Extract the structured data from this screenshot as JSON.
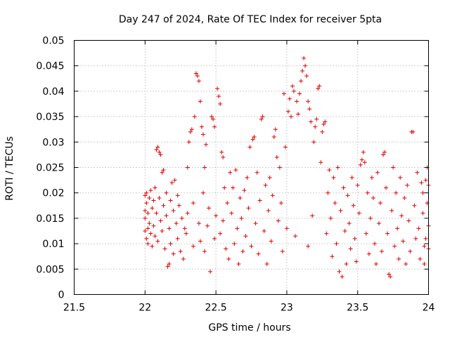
{
  "chart_data": {
    "type": "scatter",
    "title": "Day 247 of 2024, Rate Of TEC Index for receiver 5pta",
    "xlabel": "GPS time / hours",
    "ylabel": "ROTI / TECUs",
    "xlim": [
      21.5,
      24
    ],
    "ylim": [
      0,
      0.05
    ],
    "xticks": [
      21.5,
      22,
      22.5,
      23,
      23.5,
      24
    ],
    "xtick_labels": [
      "21.5",
      "22",
      "22.5",
      "23",
      "23.5",
      "24"
    ],
    "yticks": [
      0,
      0.005,
      0.01,
      0.015,
      0.02,
      0.025,
      0.03,
      0.035,
      0.04,
      0.045,
      0.05
    ],
    "ytick_labels": [
      "0",
      "0.005",
      "0.01",
      "0.015",
      "0.02",
      "0.025",
      "0.03",
      "0.035",
      "0.04",
      "0.045",
      "0.05"
    ],
    "grid": true,
    "marker": "+",
    "marker_color": "#e00000",
    "series": [
      {
        "name": "ROTI",
        "points": [
          [
            22.0,
            0.0195
          ],
          [
            22.0,
            0.0165
          ],
          [
            22.0,
            0.0125
          ],
          [
            22.0,
            0.015
          ],
          [
            22.01,
            0.018
          ],
          [
            22.01,
            0.011
          ],
          [
            22.01,
            0.02
          ],
          [
            22.02,
            0.013
          ],
          [
            22.02,
            0.016
          ],
          [
            22.02,
            0.01
          ],
          [
            22.03,
            0.019
          ],
          [
            22.03,
            0.014
          ],
          [
            22.04,
            0.0205
          ],
          [
            22.04,
            0.012
          ],
          [
            22.05,
            0.017
          ],
          [
            22.05,
            0.0095
          ],
          [
            22.06,
            0.0185
          ],
          [
            22.06,
            0.0135
          ],
          [
            22.07,
            0.021
          ],
          [
            22.07,
            0.0115
          ],
          [
            22.08,
            0.0285
          ],
          [
            22.09,
            0.029
          ],
          [
            22.1,
            0.028
          ],
          [
            22.11,
            0.0275
          ],
          [
            22.08,
            0.016
          ],
          [
            22.09,
            0.0105
          ],
          [
            22.1,
            0.019
          ],
          [
            22.11,
            0.0145
          ],
          [
            22.12,
            0.024
          ],
          [
            22.12,
            0.0125
          ],
          [
            22.13,
            0.0245
          ],
          [
            22.13,
            0.0175
          ],
          [
            22.14,
            0.009
          ],
          [
            22.15,
            0.02
          ],
          [
            22.15,
            0.0155
          ],
          [
            22.16,
            0.0055
          ],
          [
            22.17,
            0.006
          ],
          [
            22.17,
            0.013
          ],
          [
            22.18,
            0.0185
          ],
          [
            22.18,
            0.01
          ],
          [
            22.19,
            0.022
          ],
          [
            22.2,
            0.0165
          ],
          [
            22.2,
            0.008
          ],
          [
            22.21,
            0.0225
          ],
          [
            22.22,
            0.014
          ],
          [
            22.23,
            0.0195
          ],
          [
            22.23,
            0.011
          ],
          [
            22.24,
            0.0175
          ],
          [
            22.25,
            0.0085
          ],
          [
            22.26,
            0.015
          ],
          [
            22.27,
            0.007
          ],
          [
            22.28,
            0.013
          ],
          [
            22.29,
            0.012
          ],
          [
            22.3,
            0.025
          ],
          [
            22.3,
            0.016
          ],
          [
            22.31,
            0.03
          ],
          [
            22.32,
            0.032
          ],
          [
            22.33,
            0.0325
          ],
          [
            22.34,
            0.0095
          ],
          [
            22.34,
            0.018
          ],
          [
            22.35,
            0.035
          ],
          [
            22.36,
            0.0435
          ],
          [
            22.37,
            0.043
          ],
          [
            22.38,
            0.042
          ],
          [
            22.39,
            0.038
          ],
          [
            22.38,
            0.014
          ],
          [
            22.39,
            0.0105
          ],
          [
            22.4,
            0.033
          ],
          [
            22.41,
            0.0315
          ],
          [
            22.41,
            0.02
          ],
          [
            22.42,
            0.025
          ],
          [
            22.42,
            0.0085
          ],
          [
            22.43,
            0.0295
          ],
          [
            22.44,
            0.0135
          ],
          [
            22.45,
            0.017
          ],
          [
            22.46,
            0.0045
          ],
          [
            22.47,
            0.035
          ],
          [
            22.48,
            0.0345
          ],
          [
            22.49,
            0.033
          ],
          [
            22.49,
            0.011
          ],
          [
            22.5,
            0.0155
          ],
          [
            22.51,
            0.0405
          ],
          [
            22.52,
            0.039
          ],
          [
            22.53,
            0.0375
          ],
          [
            22.53,
            0.012
          ],
          [
            22.54,
            0.028
          ],
          [
            22.55,
            0.027
          ],
          [
            22.55,
            0.0145
          ],
          [
            22.56,
            0.021
          ],
          [
            22.57,
            0.009
          ],
          [
            22.58,
            0.018
          ],
          [
            22.59,
            0.007
          ],
          [
            22.6,
            0.024
          ],
          [
            22.61,
            0.016
          ],
          [
            22.62,
            0.021
          ],
          [
            22.63,
            0.01
          ],
          [
            22.64,
            0.0245
          ],
          [
            22.65,
            0.013
          ],
          [
            22.66,
            0.006
          ],
          [
            22.67,
            0.019
          ],
          [
            22.68,
            0.015
          ],
          [
            22.69,
            0.0085
          ],
          [
            22.7,
            0.0205
          ],
          [
            22.71,
            0.0115
          ],
          [
            22.72,
            0.023
          ],
          [
            22.73,
            0.017
          ],
          [
            22.74,
            0.029
          ],
          [
            22.75,
            0.0095
          ],
          [
            22.76,
            0.0305
          ],
          [
            22.77,
            0.031
          ],
          [
            22.78,
            0.014
          ],
          [
            22.79,
            0.024
          ],
          [
            22.8,
            0.008
          ],
          [
            22.81,
            0.0185
          ],
          [
            22.82,
            0.0345
          ],
          [
            22.83,
            0.035
          ],
          [
            22.84,
            0.0125
          ],
          [
            22.85,
            0.0215
          ],
          [
            22.86,
            0.006
          ],
          [
            22.87,
            0.0165
          ],
          [
            22.88,
            0.023
          ],
          [
            22.89,
            0.0105
          ],
          [
            22.9,
            0.0195
          ],
          [
            22.91,
            0.031
          ],
          [
            22.92,
            0.0325
          ],
          [
            22.93,
            0.027
          ],
          [
            22.94,
            0.0145
          ],
          [
            22.95,
            0.025
          ],
          [
            22.96,
            0.018
          ],
          [
            22.97,
            0.0085
          ],
          [
            22.98,
            0.0395
          ],
          [
            22.99,
            0.029
          ],
          [
            23.0,
            0.013
          ],
          [
            23.01,
            0.036
          ],
          [
            23.02,
            0.0385
          ],
          [
            23.03,
            0.035
          ],
          [
            23.04,
            0.041
          ],
          [
            23.05,
            0.04
          ],
          [
            23.06,
            0.0115
          ],
          [
            23.07,
            0.038
          ],
          [
            23.08,
            0.0355
          ],
          [
            23.09,
            0.0395
          ],
          [
            23.1,
            0.042
          ],
          [
            23.11,
            0.044
          ],
          [
            23.12,
            0.0465
          ],
          [
            23.13,
            0.045
          ],
          [
            23.14,
            0.043
          ],
          [
            23.15,
            0.038
          ],
          [
            23.15,
            0.0095
          ],
          [
            23.16,
            0.0365
          ],
          [
            23.17,
            0.034
          ],
          [
            23.18,
            0.0155
          ],
          [
            23.19,
            0.03
          ],
          [
            23.2,
            0.033
          ],
          [
            23.21,
            0.0345
          ],
          [
            23.22,
            0.0405
          ],
          [
            23.23,
            0.041
          ],
          [
            23.24,
            0.026
          ],
          [
            23.25,
            0.032
          ],
          [
            23.26,
            0.0335
          ],
          [
            23.27,
            0.034
          ],
          [
            23.28,
            0.012
          ],
          [
            23.29,
            0.02
          ],
          [
            23.3,
            0.0245
          ],
          [
            23.31,
            0.015
          ],
          [
            23.32,
            0.0075
          ],
          [
            23.33,
            0.023
          ],
          [
            23.34,
            0.018
          ],
          [
            23.35,
            0.01
          ],
          [
            23.36,
            0.025
          ],
          [
            23.37,
            0.0045
          ],
          [
            23.38,
            0.0165
          ],
          [
            23.39,
            0.0035
          ],
          [
            23.4,
            0.021
          ],
          [
            23.41,
            0.0125
          ],
          [
            23.42,
            0.006
          ],
          [
            23.43,
            0.0195
          ],
          [
            23.44,
            0.014
          ],
          [
            23.45,
            0.009
          ],
          [
            23.46,
            0.023
          ],
          [
            23.47,
            0.0175
          ],
          [
            23.48,
            0.011
          ],
          [
            23.49,
            0.0065
          ],
          [
            23.5,
            0.0215
          ],
          [
            23.51,
            0.016
          ],
          [
            23.52,
            0.0255
          ],
          [
            23.53,
            0.0265
          ],
          [
            23.54,
            0.028
          ],
          [
            23.55,
            0.026
          ],
          [
            23.56,
            0.012
          ],
          [
            23.57,
            0.02
          ],
          [
            23.58,
            0.008
          ],
          [
            23.59,
            0.015
          ],
          [
            23.6,
            0.023
          ],
          [
            23.61,
            0.019
          ],
          [
            23.62,
            0.01
          ],
          [
            23.63,
            0.006
          ],
          [
            23.64,
            0.024
          ],
          [
            23.65,
            0.014
          ],
          [
            23.66,
            0.018
          ],
          [
            23.67,
            0.0085
          ],
          [
            23.68,
            0.0275
          ],
          [
            23.69,
            0.028
          ],
          [
            23.7,
            0.021
          ],
          [
            23.71,
            0.012
          ],
          [
            23.72,
            0.004
          ],
          [
            23.73,
            0.0035
          ],
          [
            23.74,
            0.0165
          ],
          [
            23.75,
            0.025
          ],
          [
            23.76,
            0.0095
          ],
          [
            23.77,
            0.02
          ],
          [
            23.78,
            0.013
          ],
          [
            23.79,
            0.007
          ],
          [
            23.8,
            0.023
          ],
          [
            23.81,
            0.0155
          ],
          [
            23.82,
            0.0105
          ],
          [
            23.83,
            0.019
          ],
          [
            23.84,
            0.006
          ],
          [
            23.85,
            0.0215
          ],
          [
            23.86,
            0.0145
          ],
          [
            23.87,
            0.0085
          ],
          [
            23.88,
            0.032
          ],
          [
            23.89,
            0.032
          ],
          [
            23.9,
            0.0175
          ],
          [
            23.91,
            0.011
          ],
          [
            23.92,
            0.024
          ],
          [
            23.93,
            0.013
          ],
          [
            23.94,
            0.007
          ],
          [
            23.95,
            0.022
          ],
          [
            23.96,
            0.016
          ],
          [
            23.97,
            0.0095
          ],
          [
            23.98,
            0.0225
          ],
          [
            23.99,
            0.025
          ],
          [
            24.0,
            0.0215
          ],
          [
            24.0,
            0.0135
          ],
          [
            24.0,
            0.009
          ],
          [
            23.99,
            0.018
          ],
          [
            23.98,
            0.011
          ],
          [
            23.97,
            0.006
          ],
          [
            23.96,
            0.02
          ]
        ]
      }
    ]
  }
}
